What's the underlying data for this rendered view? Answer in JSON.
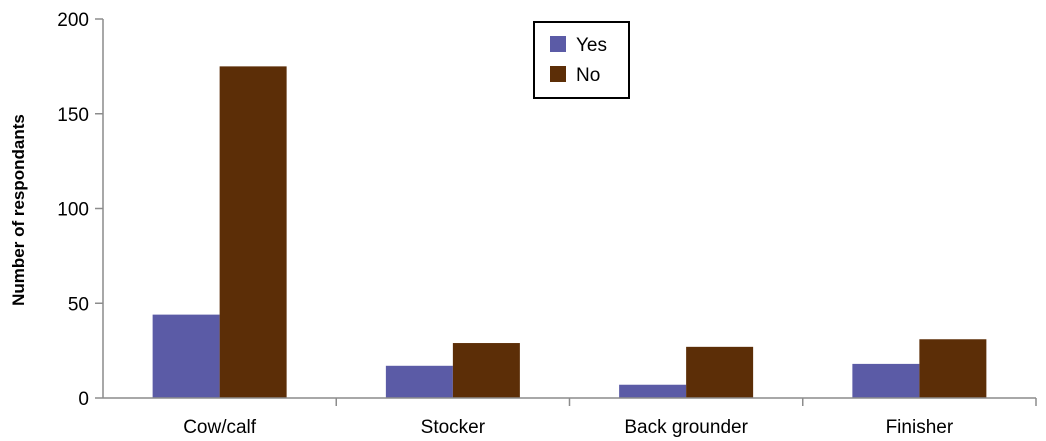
{
  "chart_data": {
    "type": "bar",
    "title": "",
    "xlabel": "",
    "ylabel": "Number of respondants",
    "categories": [
      "Cow/calf",
      "Stocker",
      "Back grounder",
      "Finisher"
    ],
    "series": [
      {
        "name": "Yes",
        "color": "#5b5ba6",
        "values": [
          44,
          17,
          7,
          18
        ]
      },
      {
        "name": "No",
        "color": "#5c2e07",
        "values": [
          175,
          29,
          27,
          31
        ]
      }
    ],
    "ylim": [
      0,
      200
    ],
    "yticks": [
      0,
      50,
      100,
      150,
      200
    ],
    "grid": false,
    "legend_position": "top-center"
  }
}
